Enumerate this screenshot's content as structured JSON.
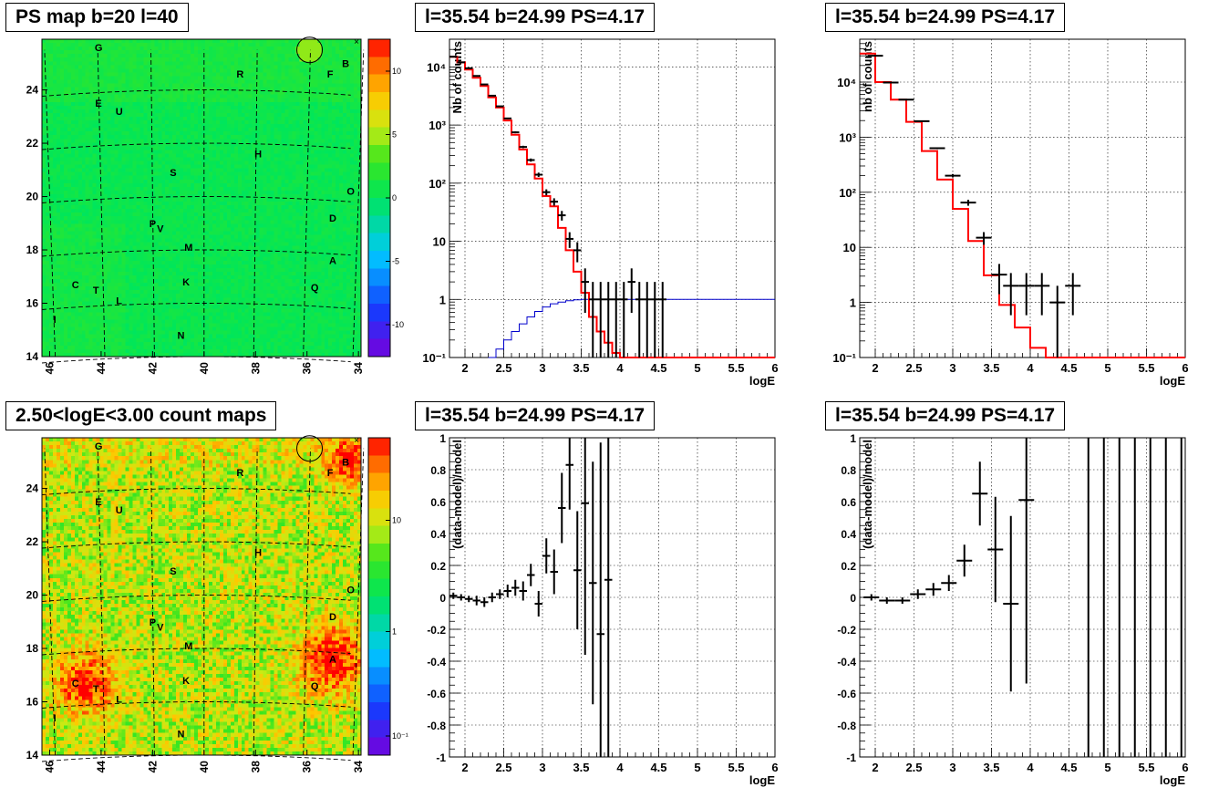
{
  "panels": {
    "ps_map": {
      "title": "PS map b=20 l=40",
      "x_ticks": [
        "46",
        "44",
        "42",
        "40",
        "38",
        "36",
        "34"
      ],
      "y_ticks": [
        "14",
        "16",
        "18",
        "20",
        "22",
        "24"
      ],
      "z_ticks": [
        "10",
        "5",
        "0",
        "-5",
        "-10"
      ],
      "sources": [
        "G",
        "B",
        "R",
        "F",
        "E",
        "U",
        "H",
        "S",
        "O",
        "P",
        "V",
        "D",
        "M",
        "A",
        "C",
        "T",
        "K",
        "Q",
        "L",
        "I",
        "N"
      ]
    },
    "count_map": {
      "title": "2.50<logE<3.00 count maps",
      "x_ticks": [
        "46",
        "44",
        "42",
        "40",
        "38",
        "36",
        "34"
      ],
      "y_ticks": [
        "14",
        "16",
        "18",
        "20",
        "22",
        "24"
      ],
      "z_ticks": [
        "10",
        "1",
        "10⁻¹"
      ],
      "sources": [
        "G",
        "B",
        "R",
        "F",
        "E",
        "U",
        "H",
        "S",
        "O",
        "P",
        "V",
        "D",
        "M",
        "A",
        "C",
        "T",
        "K",
        "Q",
        "L",
        "I",
        "N"
      ]
    },
    "spectrum_left": {
      "title": "l=35.54 b=24.99 PS=4.17"
    },
    "spectrum_right": {
      "title": "l=35.54 b=24.99 PS=4.17"
    },
    "residual_left": {
      "title": "l=35.54 b=24.99 PS=4.17"
    },
    "residual_right": {
      "title": "l=35.54 b=24.99 PS=4.17"
    }
  },
  "chart_data": [
    {
      "type": "heatmap",
      "title": "PS map b=20 l=40",
      "xlim": [
        46.3,
        33.9
      ],
      "ylim": [
        14,
        25.9
      ],
      "zlim": [
        -12.5,
        12.5
      ],
      "z_ticks": [
        10,
        5,
        0,
        -5,
        -10
      ],
      "marked_position": [
        35.9,
        25.5
      ],
      "sources": [
        {
          "label": "G",
          "l": 44.1,
          "b": 25.6
        },
        {
          "label": "B",
          "l": 34.5,
          "b": 25.0
        },
        {
          "label": "R",
          "l": 38.6,
          "b": 24.6
        },
        {
          "label": "F",
          "l": 35.1,
          "b": 24.6
        },
        {
          "label": "E",
          "l": 44.1,
          "b": 23.5
        },
        {
          "label": "U",
          "l": 43.3,
          "b": 23.2
        },
        {
          "label": "H",
          "l": 37.9,
          "b": 21.6
        },
        {
          "label": "S",
          "l": 41.2,
          "b": 20.9
        },
        {
          "label": "O",
          "l": 34.3,
          "b": 20.2
        },
        {
          "label": "P",
          "l": 42.0,
          "b": 19.0
        },
        {
          "label": "V",
          "l": 41.7,
          "b": 18.8
        },
        {
          "label": "D",
          "l": 35.0,
          "b": 19.2
        },
        {
          "label": "M",
          "l": 40.6,
          "b": 18.1
        },
        {
          "label": "A",
          "l": 35.0,
          "b": 17.6
        },
        {
          "label": "C",
          "l": 45.0,
          "b": 16.7
        },
        {
          "label": "T",
          "l": 44.2,
          "b": 16.5
        },
        {
          "label": "K",
          "l": 40.7,
          "b": 16.8
        },
        {
          "label": "Q",
          "l": 35.7,
          "b": 16.6
        },
        {
          "label": "L",
          "l": 43.3,
          "b": 16.1
        },
        {
          "label": "I",
          "l": 45.8,
          "b": 15.4
        },
        {
          "label": "N",
          "l": 40.9,
          "b": 14.8
        }
      ]
    },
    {
      "type": "heatmap",
      "title": "2.50<logE<3.00 count maps",
      "xlim": [
        46.3,
        33.9
      ],
      "ylim": [
        14,
        25.9
      ],
      "z_scale": "log",
      "z_ticks": [
        10,
        1,
        0.1
      ],
      "hotspots": [
        "A",
        "C"
      ]
    },
    {
      "type": "line",
      "title": "l=35.54 b=24.99 PS=4.17",
      "xlabel": "logE",
      "ylabel": "Nb of counts",
      "y_scale": "log",
      "xlim": [
        1.8,
        6
      ],
      "ylim": [
        0.1,
        30000
      ],
      "x_ticks": [
        2,
        2.5,
        3,
        3.5,
        4,
        4.5,
        5,
        5.5,
        6
      ],
      "y_ticks": [
        "10⁻¹",
        "1",
        "10",
        "10²",
        "10³",
        "10⁴"
      ],
      "grid": true,
      "series": [
        {
          "name": "",
          "style": "points-with-errors",
          "color": "#000000",
          "x": [
            1.85,
            1.95,
            2.05,
            2.15,
            2.25,
            2.35,
            2.45,
            2.55,
            2.65,
            2.75,
            2.85,
            2.95,
            3.05,
            3.15,
            3.25,
            3.35,
            3.45,
            3.55,
            3.65,
            3.75,
            3.85,
            3.95,
            4.05,
            4.15,
            4.25,
            4.35,
            4.45,
            4.55
          ],
          "y": [
            15000,
            12000,
            9500,
            7000,
            5000,
            3200,
            2100,
            1300,
            750,
            420,
            250,
            140,
            70,
            48,
            28,
            11,
            7,
            2,
            1,
            1,
            1,
            1,
            1,
            2,
            1,
            1,
            1,
            1
          ]
        },
        {
          "name": "",
          "style": "step",
          "color": "#ff0000",
          "x": [
            1.8,
            1.9,
            2.0,
            2.1,
            2.2,
            2.3,
            2.4,
            2.5,
            2.6,
            2.7,
            2.8,
            2.9,
            3.0,
            3.1,
            3.2,
            3.3,
            3.4,
            3.5,
            3.6,
            3.7,
            3.8,
            3.9,
            4.0,
            4.1,
            4.2,
            4.3,
            4.4,
            4.5,
            4.6,
            4.7,
            4.8,
            4.9,
            5.0,
            5.5,
            6.0
          ],
          "y": [
            15000,
            12000,
            9000,
            6500,
            4700,
            3000,
            2000,
            1200,
            680,
            380,
            210,
            120,
            60,
            40,
            17,
            7,
            3,
            1.3,
            0.5,
            0.28,
            0.18,
            0.12,
            0.1,
            0.1,
            0.1,
            0.1,
            0.1,
            0.1,
            0.1,
            0.1,
            0.1,
            0.1,
            0.1,
            0.1,
            0.1
          ]
        },
        {
          "name": "",
          "style": "step",
          "color": "#0000cc",
          "x": [
            2.3,
            2.4,
            2.5,
            2.6,
            2.7,
            2.8,
            2.9,
            3.0,
            3.1,
            3.2,
            3.3,
            3.4,
            3.5,
            3.6,
            4.6,
            6.0
          ],
          "y": [
            0.1,
            0.14,
            0.2,
            0.28,
            0.38,
            0.5,
            0.62,
            0.74,
            0.84,
            0.9,
            0.95,
            0.98,
            1.0,
            1.0,
            1.0,
            1.0
          ]
        }
      ]
    },
    {
      "type": "line",
      "title": "l=35.54 b=24.99 PS=4.17",
      "xlabel": "logE",
      "ylabel": "nb of counts",
      "y_scale": "log",
      "xlim": [
        1.8,
        6
      ],
      "ylim": [
        0.1,
        60000
      ],
      "x_ticks": [
        2,
        2.5,
        3,
        3.5,
        4,
        4.5,
        5,
        5.5,
        6
      ],
      "y_ticks": [
        "10⁻¹",
        "1",
        "10",
        "10²",
        "10³",
        "10⁴"
      ],
      "grid": true,
      "series": [
        {
          "name": "",
          "style": "points-with-errors",
          "color": "#000000",
          "x": [
            2.0,
            2.2,
            2.4,
            2.6,
            2.8,
            3.0,
            3.2,
            3.4,
            3.6,
            3.75,
            3.95,
            4.15,
            4.35,
            4.55
          ],
          "y": [
            30000,
            9800,
            4800,
            1950,
            630,
            200,
            65,
            15,
            3.2,
            2,
            2,
            2,
            1,
            2
          ]
        },
        {
          "name": "",
          "style": "step",
          "color": "#ff0000",
          "x": [
            1.8,
            2.0,
            2.2,
            2.4,
            2.6,
            2.8,
            3.0,
            3.2,
            3.4,
            3.6,
            3.8,
            4.0,
            4.2,
            4.4,
            6.0
          ],
          "y": [
            33000,
            10000,
            4800,
            1900,
            560,
            170,
            50,
            13,
            3.1,
            0.9,
            0.35,
            0.15,
            0.1,
            0.1,
            0.1
          ]
        }
      ]
    },
    {
      "type": "scatter",
      "title": "l=35.54 b=24.99 PS=4.17",
      "xlabel": "logE",
      "ylabel": "(data-model)/model",
      "xlim": [
        1.8,
        6
      ],
      "ylim": [
        -1,
        1
      ],
      "x_ticks": [
        2,
        2.5,
        3,
        3.5,
        4,
        4.5,
        5,
        5.5,
        6
      ],
      "y_ticks": [
        -1,
        -0.8,
        -0.6,
        -0.4,
        -0.2,
        0,
        0.2,
        0.4,
        0.6,
        0.8,
        1
      ],
      "grid": true,
      "series": [
        {
          "name": "",
          "style": "points-with-errors",
          "x": [
            1.85,
            1.95,
            2.05,
            2.15,
            2.25,
            2.35,
            2.45,
            2.55,
            2.65,
            2.75,
            2.85,
            2.95,
            3.05,
            3.15,
            3.25,
            3.35,
            3.45,
            3.55,
            3.65,
            3.75,
            3.85
          ],
          "y": [
            0.01,
            0.0,
            -0.01,
            -0.02,
            -0.03,
            0.0,
            0.02,
            0.04,
            0.06,
            0.04,
            0.14,
            -0.04,
            0.26,
            0.16,
            0.56,
            0.83,
            0.17,
            0.59,
            0.09,
            -0.23,
            0.11
          ],
          "err": [
            0.02,
            0.02,
            0.02,
            0.03,
            0.03,
            0.03,
            0.03,
            0.04,
            0.05,
            0.06,
            0.07,
            0.08,
            0.11,
            0.14,
            0.22,
            0.28,
            0.37,
            0.95,
            0.76,
            1.2,
            1.3
          ]
        }
      ]
    },
    {
      "type": "scatter",
      "title": "l=35.54 b=24.99 PS=4.17",
      "xlabel": "logE",
      "ylabel": "(data-model)/model",
      "xlim": [
        1.8,
        6
      ],
      "ylim": [
        -1,
        1
      ],
      "x_ticks": [
        2,
        2.5,
        3,
        3.5,
        4,
        4.5,
        5,
        5.5,
        6
      ],
      "y_ticks": [
        -1,
        -0.8,
        -0.6,
        -0.4,
        -0.2,
        0,
        0.2,
        0.4,
        0.6,
        0.8,
        1
      ],
      "grid": true,
      "series": [
        {
          "name": "",
          "style": "points-with-errors",
          "x": [
            1.95,
            2.15,
            2.35,
            2.55,
            2.75,
            2.95,
            3.15,
            3.35,
            3.55,
            3.75,
            3.95
          ],
          "y": [
            0.0,
            -0.02,
            -0.02,
            0.02,
            0.05,
            0.09,
            0.23,
            0.65,
            0.3,
            -0.04,
            0.61
          ],
          "err": [
            0.02,
            0.02,
            0.02,
            0.03,
            0.04,
            0.05,
            0.1,
            0.2,
            0.33,
            0.55,
            1.15
          ]
        },
        {
          "name": "",
          "style": "vertical-lines",
          "x": [
            4.75,
            4.95,
            5.15,
            5.35,
            5.55,
            5.75,
            5.95
          ]
        }
      ]
    }
  ]
}
